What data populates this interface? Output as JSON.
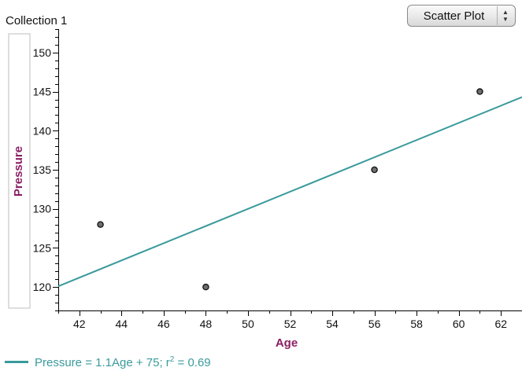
{
  "collection": {
    "title": "Collection 1"
  },
  "plot_selector": {
    "value": "Scatter Plot",
    "arrow_up": "▲",
    "arrow_down": "▼"
  },
  "legend": {
    "prefix": "Pressure = 1.1Age + 75; r",
    "superscript": "2",
    "suffix": " = 0.69"
  },
  "colors": {
    "line": "#3a9a9c",
    "axis_title": "#8a1e64",
    "point_fill": "#6e6e6e"
  },
  "chart_data": {
    "type": "scatter",
    "xlabel": "Age",
    "ylabel": "Pressure",
    "xlim": [
      41,
      63
    ],
    "ylim": [
      117,
      153
    ],
    "x_ticks": [
      42,
      44,
      46,
      48,
      50,
      52,
      54,
      56,
      58,
      60,
      62
    ],
    "y_ticks": [
      120,
      125,
      130,
      135,
      140,
      145,
      150
    ],
    "points": [
      {
        "x": 43,
        "y": 128
      },
      {
        "x": 48,
        "y": 120
      },
      {
        "x": 56,
        "y": 135
      },
      {
        "x": 61,
        "y": 145
      }
    ],
    "fit_line": {
      "slope": 1.1,
      "intercept": 75,
      "r_squared": 0.69
    }
  }
}
